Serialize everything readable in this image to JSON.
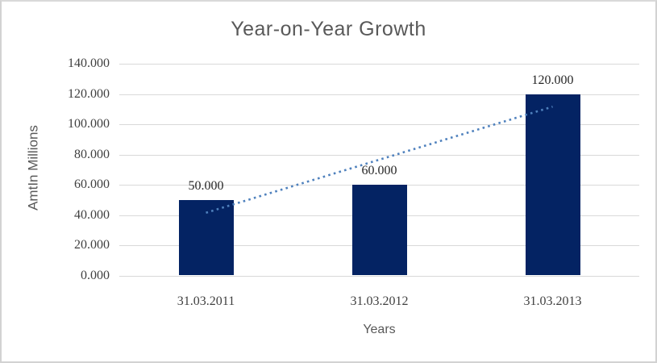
{
  "chart_data": {
    "type": "bar",
    "title": "Year-on-Year Growth",
    "xlabel": "Years",
    "ylabel": "AmtIn Millions",
    "categories": [
      "31.03.2011",
      "31.03.2012",
      "31.03.2013"
    ],
    "values": [
      50,
      60,
      120
    ],
    "data_labels": [
      "50.000",
      "60.000",
      "120.000"
    ],
    "ylim": [
      0,
      140
    ],
    "y_tick_values": [
      0,
      20,
      40,
      60,
      80,
      100,
      120,
      140
    ],
    "y_tick_labels": [
      "0.000",
      "20.000",
      "40.000",
      "60.000",
      "80.000",
      "100.000",
      "120.000",
      "140.000"
    ],
    "grid": true,
    "legend": false,
    "trendline": {
      "type": "linear",
      "style": "dotted",
      "values": [
        41.667,
        76.667,
        111.667
      ]
    },
    "colors": {
      "bar": "#042363",
      "trendline": "#4f81bd",
      "gridline": "#d9d9d9",
      "title_text": "#595959",
      "axis_text": "#404040"
    }
  }
}
